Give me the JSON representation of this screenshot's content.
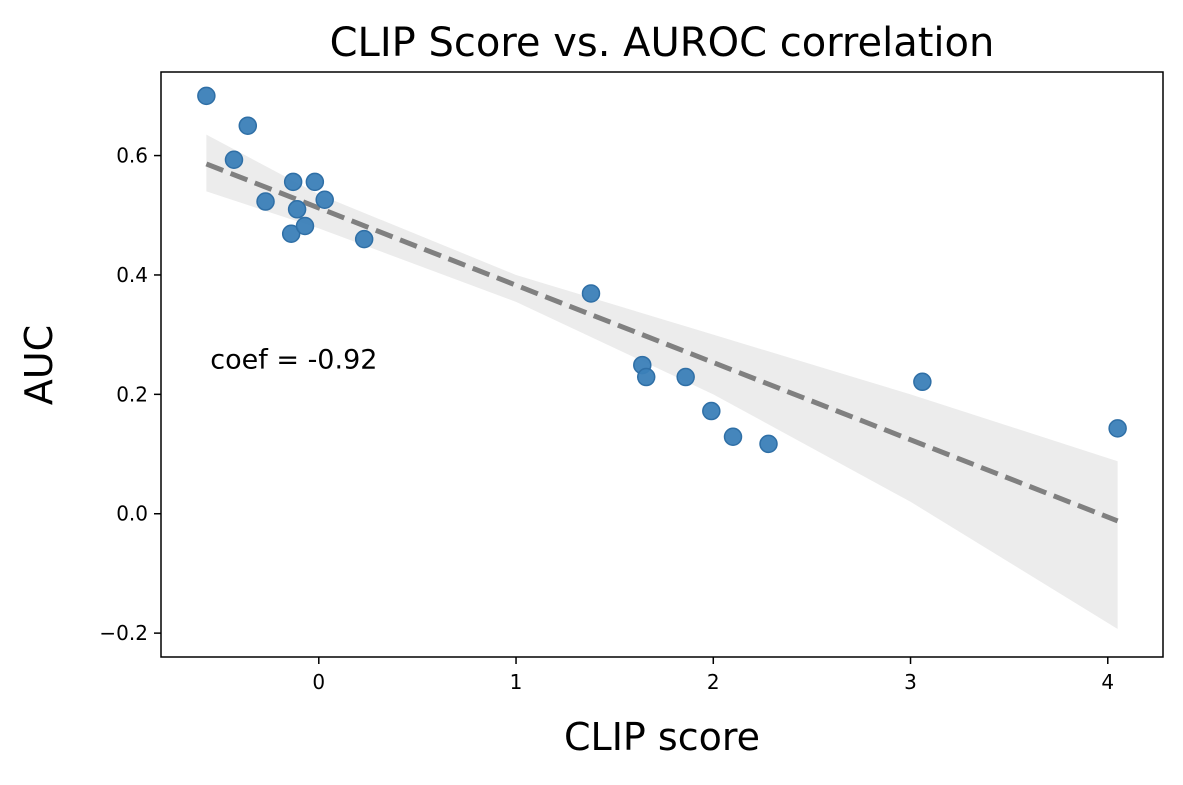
{
  "chart_data": {
    "type": "scatter",
    "title": "CLIP Score vs. AUROC correlation",
    "xlabel": "CLIP score",
    "ylabel": "AUC",
    "xlim": [
      -0.8,
      4.28
    ],
    "ylim": [
      -0.24,
      0.74
    ],
    "xticks": [
      0,
      1,
      2,
      3,
      4
    ],
    "yticks": [
      -0.2,
      0.0,
      0.2,
      0.4,
      0.6
    ],
    "xtick_labels": [
      "0",
      "1",
      "2",
      "3",
      "4"
    ],
    "ytick_labels": [
      "−0.2",
      "0.0",
      "0.2",
      "0.4",
      "0.6"
    ],
    "grid": false,
    "legend": "none",
    "points": [
      {
        "x": -0.57,
        "y": 0.7
      },
      {
        "x": -0.36,
        "y": 0.65
      },
      {
        "x": -0.43,
        "y": 0.593
      },
      {
        "x": -0.27,
        "y": 0.523
      },
      {
        "x": -0.13,
        "y": 0.556
      },
      {
        "x": -0.11,
        "y": 0.51
      },
      {
        "x": -0.14,
        "y": 0.469
      },
      {
        "x": -0.07,
        "y": 0.482
      },
      {
        "x": -0.02,
        "y": 0.556
      },
      {
        "x": 0.03,
        "y": 0.526
      },
      {
        "x": 0.23,
        "y": 0.46
      },
      {
        "x": 1.38,
        "y": 0.369
      },
      {
        "x": 1.64,
        "y": 0.249
      },
      {
        "x": 1.66,
        "y": 0.229
      },
      {
        "x": 1.86,
        "y": 0.229
      },
      {
        "x": 1.99,
        "y": 0.172
      },
      {
        "x": 2.1,
        "y": 0.129
      },
      {
        "x": 2.28,
        "y": 0.117
      },
      {
        "x": 3.06,
        "y": 0.221
      },
      {
        "x": 4.05,
        "y": 0.143
      }
    ],
    "regression": {
      "x_start": -0.57,
      "y_start": 0.586,
      "x_end": 4.05,
      "y_end": -0.012,
      "band_upper": [
        [
          -0.57,
          0.635
        ],
        [
          0.0,
          0.535
        ],
        [
          1.0,
          0.4
        ],
        [
          2.0,
          0.3
        ],
        [
          3.0,
          0.2
        ],
        [
          4.05,
          0.088
        ]
      ],
      "band_lower": [
        [
          -0.57,
          0.54
        ],
        [
          0.0,
          0.478
        ],
        [
          1.0,
          0.355
        ],
        [
          2.0,
          0.2
        ],
        [
          3.0,
          0.02
        ],
        [
          4.05,
          -0.193
        ]
      ]
    },
    "annotation": {
      "text": "coef = -0.92",
      "x": -0.55,
      "y": 0.26
    },
    "colors": {
      "point": "#3b80b8",
      "point_edge": "#2f6fa6",
      "regression_line": "#808080",
      "band": "#ececec"
    }
  }
}
